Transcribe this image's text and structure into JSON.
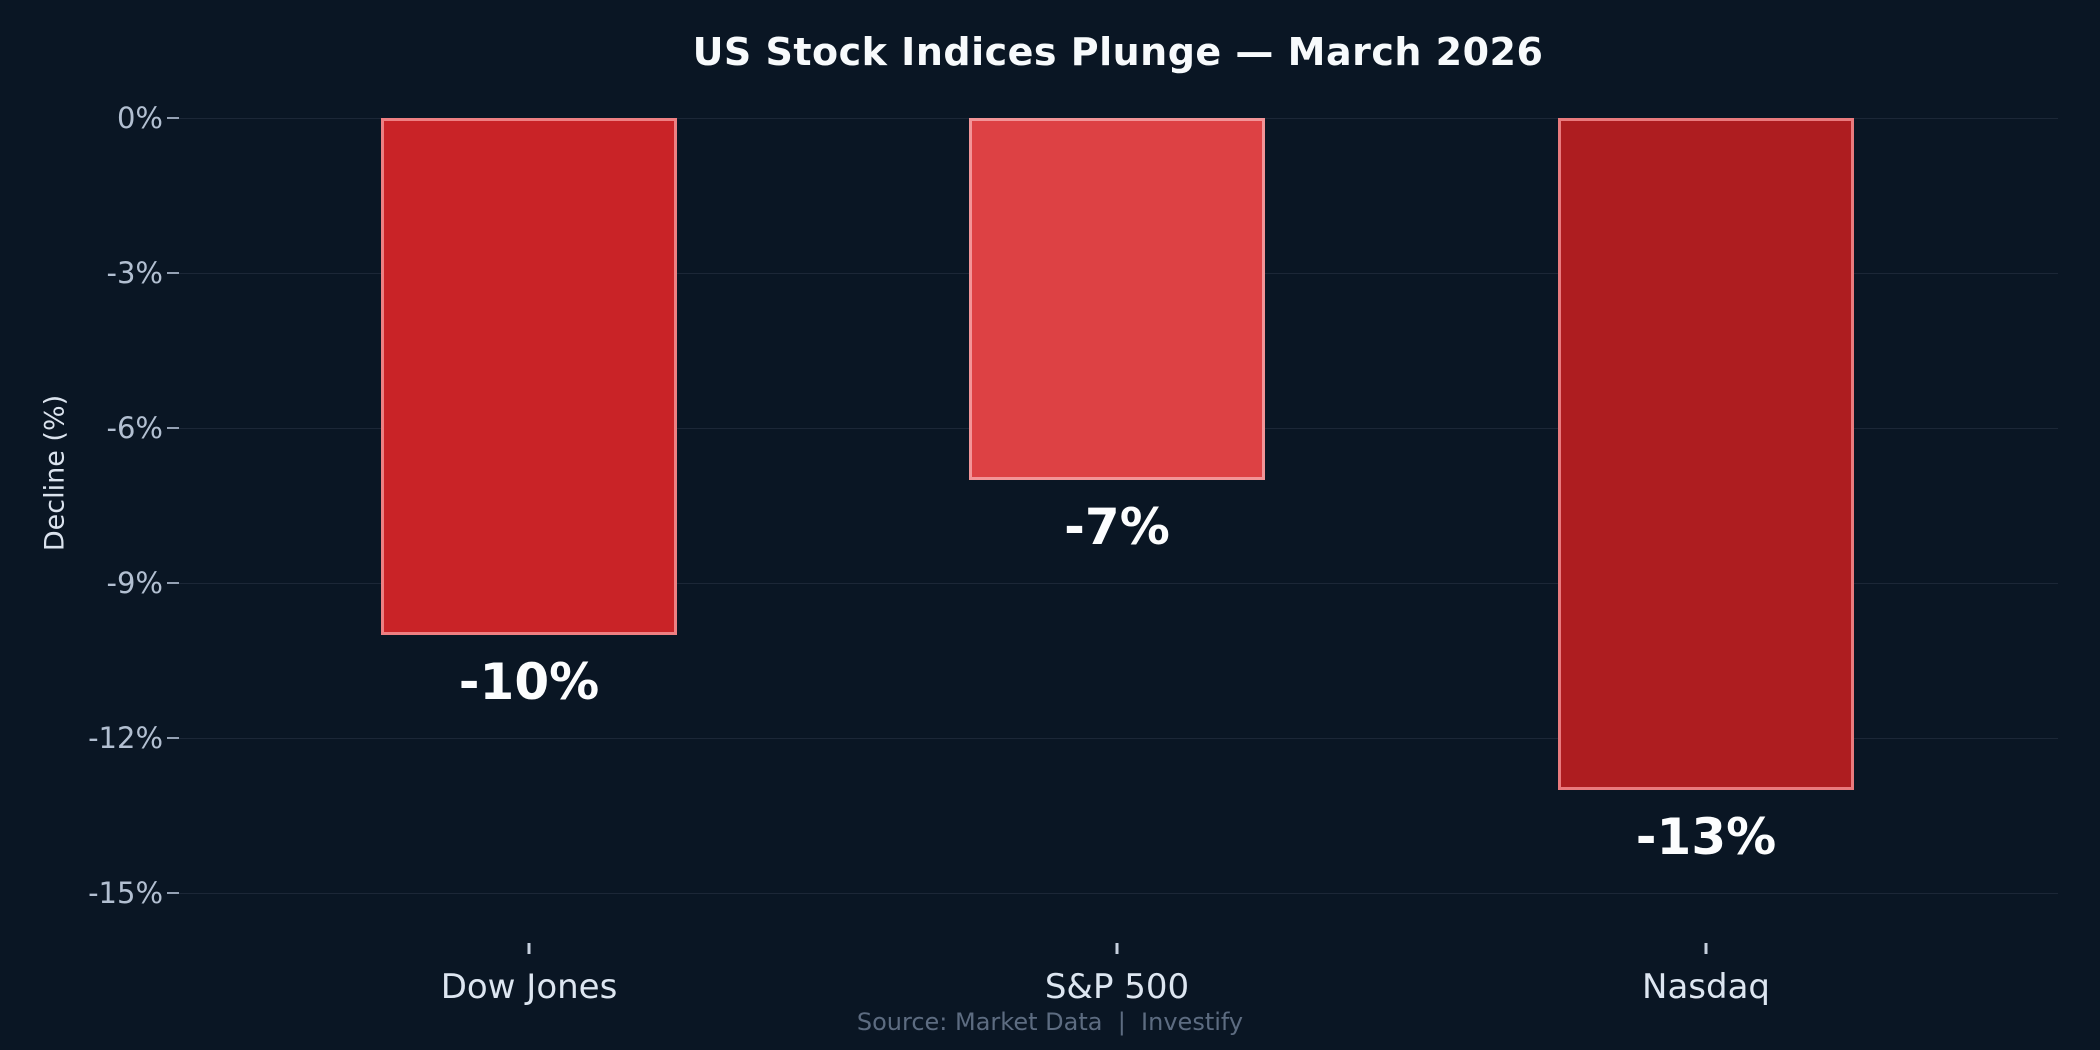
{
  "page": {
    "background_color": "#0a1624"
  },
  "chart_data": {
    "type": "bar",
    "title": "US Stock Indices Plunge — March 2026",
    "xlabel": "",
    "ylabel": "Decline (%)",
    "categories": [
      "Dow Jones",
      "S&P 500",
      "Nasdaq"
    ],
    "values": [
      -10,
      -7,
      -13
    ],
    "value_labels": [
      "-10%",
      "-7%",
      "-13%"
    ],
    "bar_fill_colors": [
      "#c92327",
      "#dd4144",
      "#ae1d20"
    ],
    "bar_border_colors": [
      "#ee7f82",
      "#f29497",
      "#e97a7d"
    ],
    "yticks": {
      "labels": [
        "0%",
        "-3%",
        "-6%",
        "-9%",
        "-12%",
        "-15%"
      ],
      "values": [
        0,
        -3,
        -6,
        -9,
        -12,
        -15
      ]
    },
    "ylim": [
      -15,
      0
    ],
    "grid": true,
    "gridline_color": "#1c2737",
    "legend": false,
    "title_color": "#f7fafc",
    "tick_label_color": "#b2bfd1",
    "category_label_color": "#dde6f1",
    "value_label_color": "#fcfdfe",
    "source": "Source: Market Data  |  Investify",
    "source_color": "#5d6c81"
  }
}
